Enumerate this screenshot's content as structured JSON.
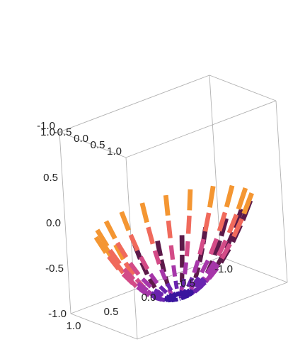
{
  "chart_data": {
    "type": "scatter",
    "subtype": "3d-surface-dashed-parabolic",
    "box": true,
    "grid": false,
    "axes": {
      "x": {
        "range": [
          -1,
          1
        ],
        "ticks": [
          "-1.0",
          "-0.5",
          "0.0",
          "0.5",
          "1.0"
        ]
      },
      "y": {
        "range": [
          -1,
          1
        ],
        "ticks": [
          "-1.0",
          "-0.5",
          "0.0",
          "0.5",
          "1.0"
        ]
      },
      "z": {
        "range": [
          -1,
          1
        ],
        "ticks": [
          "-1.0",
          "-0.5",
          "0.0",
          "0.5",
          "1.0"
        ]
      }
    },
    "surface": {
      "equation": "z = x^2 + y^2 - 1",
      "mesh": "radial",
      "dashed": true,
      "rays": 20,
      "radius_samples": [
        0.12,
        0.28,
        0.44,
        0.6,
        0.76,
        0.9
      ]
    },
    "colors": {
      "center": "#1a0a8c",
      "inner": "#5a1fb0",
      "mid": "#b33aa8",
      "outer": "#ef5b6a",
      "edge": "#f5a623",
      "far_dark": "#5c1a4a",
      "box_line": "#b0b0b0"
    }
  }
}
